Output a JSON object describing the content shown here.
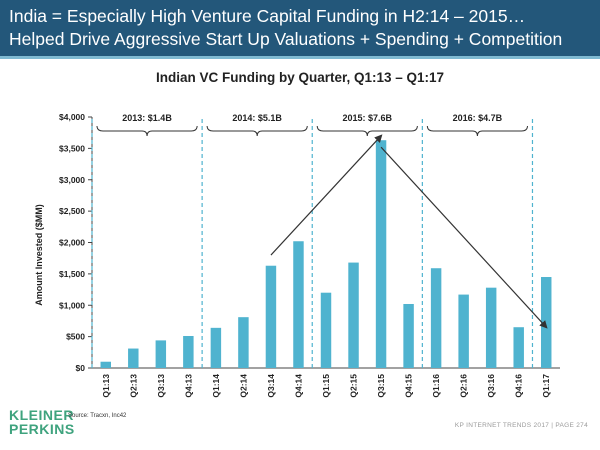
{
  "header": {
    "title_line1": "India = Especially High Venture Capital Funding in H2:14 – 2015…",
    "title_line2": "Helped Drive Aggressive Start Up Valuations + Spending + Competition",
    "accent": "#23577a",
    "rule": "#7fb9d1"
  },
  "chart_data": {
    "type": "bar",
    "title": "Indian VC Funding by Quarter, Q1:13 – Q1:17",
    "xlabel": "",
    "ylabel": "Amount Invested ($MM)",
    "ylim": [
      0,
      4000
    ],
    "yticks": [
      0,
      500,
      1000,
      1500,
      2000,
      2500,
      3000,
      3500,
      4000
    ],
    "ytick_labels": [
      "$0",
      "$500",
      "$1,000",
      "$1,500",
      "$2,000",
      "$2,500",
      "$3,000",
      "$3,500",
      "$4,000"
    ],
    "categories": [
      "Q1:13",
      "Q2:13",
      "Q3:13",
      "Q4:13",
      "Q1:14",
      "Q2:14",
      "Q3:14",
      "Q4:14",
      "Q1:15",
      "Q2:15",
      "Q3:15",
      "Q4:15",
      "Q1:16",
      "Q2:16",
      "Q3:16",
      "Q4:16",
      "Q1:17"
    ],
    "values": [
      100,
      310,
      440,
      510,
      640,
      810,
      1630,
      2020,
      1200,
      1680,
      3630,
      1020,
      1590,
      1170,
      1280,
      650,
      1450
    ],
    "bar_color": "#4fb3cf",
    "year_groups": [
      {
        "label": "2013: $1.4B",
        "start": 0,
        "end": 3
      },
      {
        "label": "2014: $5.1B",
        "start": 4,
        "end": 7
      },
      {
        "label": "2015: $7.6B",
        "start": 8,
        "end": 11
      },
      {
        "label": "2016: $4.7B",
        "start": 12,
        "end": 15
      }
    ],
    "dividers_after": [
      -1,
      3,
      7,
      11,
      15
    ],
    "arrows": [
      {
        "from": {
          "x": 6,
          "y": 1800
        },
        "to": {
          "x": 10,
          "y": 3700
        }
      },
      {
        "from": {
          "x": 10,
          "y": 3520
        },
        "to": {
          "x": 16,
          "y": 650
        }
      }
    ],
    "grid": false
  },
  "footer": {
    "logo_line1": "KLEINER",
    "logo_line2": "PERKINS",
    "logo_color": "#3fa37e",
    "source": "Source: Tracxn, Inc42",
    "page": "KP INTERNET TRENDS 2017  |  PAGE 274"
  }
}
